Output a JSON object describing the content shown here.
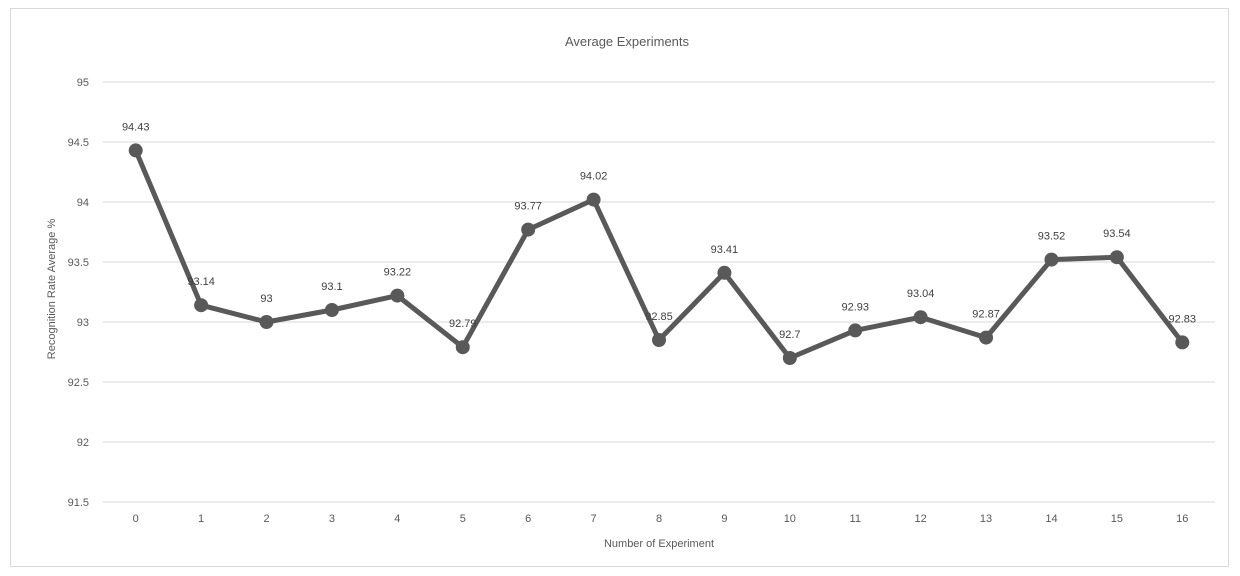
{
  "chart_data": {
    "type": "line",
    "title": "Average Experiments",
    "xlabel": "Number of Experiment",
    "ylabel": "Recognition Rate Average %",
    "categories": [
      "0",
      "1",
      "2",
      "3",
      "4",
      "5",
      "6",
      "7",
      "8",
      "9",
      "10",
      "11",
      "12",
      "13",
      "14",
      "15",
      "16"
    ],
    "series": [
      {
        "values": [
          94.43,
          93.14,
          93,
          93.1,
          93.22,
          92.79,
          93.77,
          94.02,
          92.85,
          93.41,
          92.7,
          92.93,
          93.04,
          92.87,
          93.52,
          93.54,
          92.83
        ]
      }
    ],
    "data_labels": [
      "94.43",
      "93.14",
      "93",
      "93.1",
      "93.22",
      "92.79",
      "93.77",
      "94.02",
      "92.85",
      "93.41",
      "92.7",
      "92.93",
      "93.04",
      "92.87",
      "93.52",
      "93.54",
      "92.83"
    ],
    "ylim": [
      91.5,
      95
    ],
    "yticks": [
      "91.5",
      "92",
      "92.5",
      "93",
      "93.5",
      "94",
      "94.5",
      "95"
    ],
    "grid": true,
    "legend": "none",
    "colors": {
      "line": "#595959",
      "grid": "#d9d9d9",
      "text": "#595959"
    }
  }
}
